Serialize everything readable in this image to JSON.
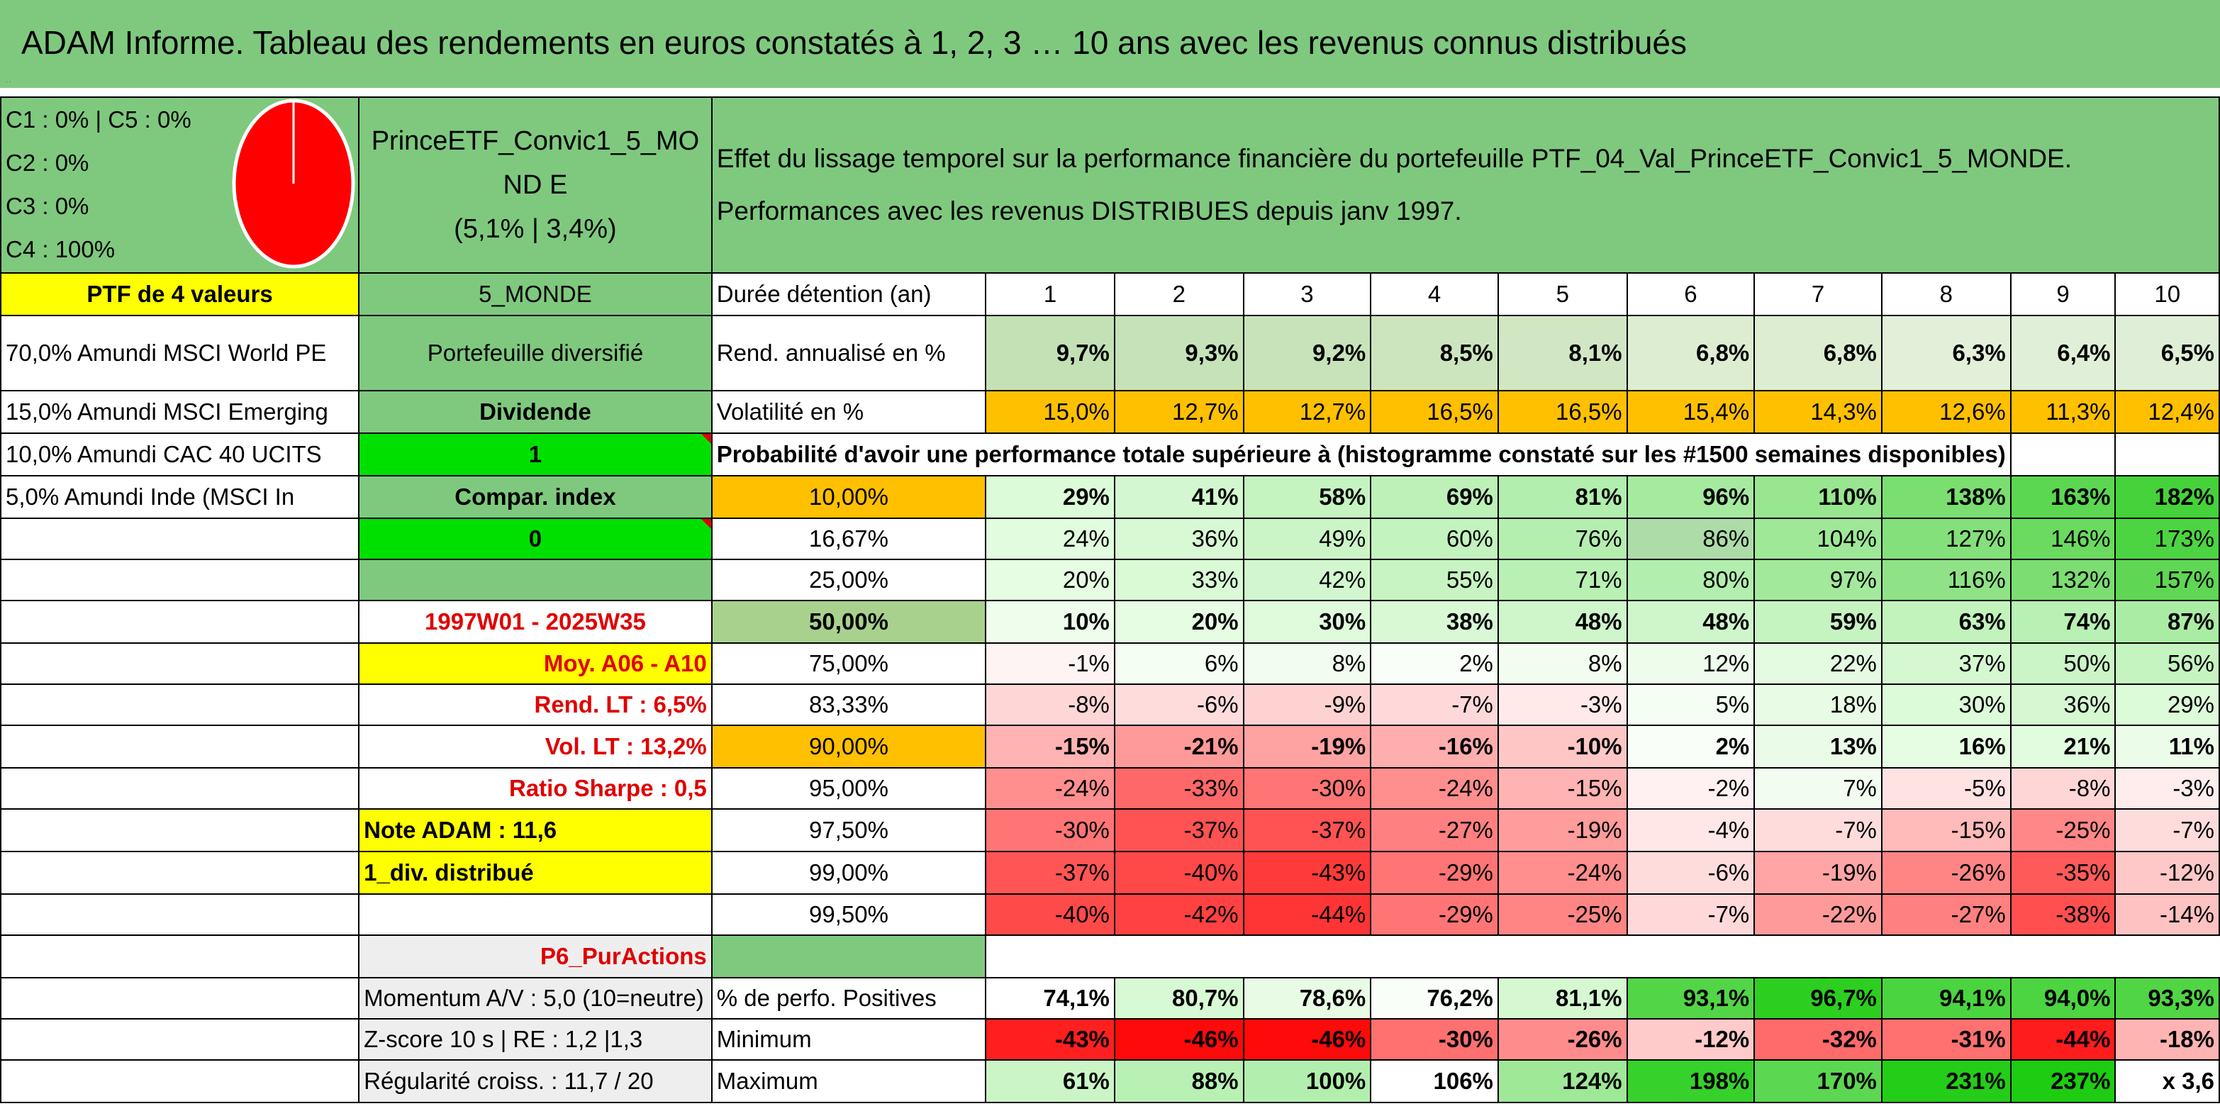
{
  "title": "ADAM Informe. Tableau des rendements en euros constatés à 1, 2, 3 … 10 ans avec les revenus connus distribués",
  "classes": [
    "C1 : 0% | C5 : 0%",
    "C2 : 0%",
    "C3 : 0%",
    "C4 : 100%"
  ],
  "pie": {
    "color": "#ff0000",
    "c4_share": 1.0
  },
  "portfolio": {
    "name": "PrinceETF_Convic1_5_MOND E",
    "stats": "(5,1% | 3,4%)",
    "count": "PTF de 4 valeurs",
    "zone": "5_MONDE",
    "type": "Portefeuille diversifié",
    "mode": "Dividende",
    "mode_value": "1",
    "compare": "Compar. index",
    "compare_value": "0",
    "period": "1997W01 - 2025W35",
    "avg": "Moy. A06 - A10",
    "rend_lt": "Rend. LT : 6,5%",
    "vol_lt": "Vol. LT : 13,2%",
    "sharpe": "Ratio Sharpe : 0,5",
    "note": "Note ADAM : 11,6",
    "div": "1_div. distribué",
    "category": "P6_PurActions",
    "momentum": "Momentum A/V : 5,0 (10=neutre)",
    "zscore": "Z-score 10 s | RE : 1,2 |1,3",
    "regularite": "Régularité croiss. : 11,7 / 20"
  },
  "holdings": [
    "70,0% Amundi MSCI World PE",
    "15,0% Amundi MSCI Emerging",
    "10,0% Amundi CAC 40 UCITS",
    "5,0% Amundi Inde (MSCI In"
  ],
  "effect": {
    "line1": "Effet du lissage temporel sur la performance financière du portefeuille PTF_04_Val_PrinceETF_Convic1_5_MONDE.",
    "line2": "Performances avec les revenus DISTRIBUES depuis janv 1997."
  },
  "table": {
    "duration_label": "Durée détention (an)",
    "years": [
      "1",
      "2",
      "3",
      "4",
      "5",
      "6",
      "7",
      "8",
      "9",
      "10"
    ],
    "rend_label": "Rend. annualisé en %",
    "rend": [
      "9,7%",
      "9,3%",
      "9,2%",
      "8,5%",
      "8,1%",
      "6,8%",
      "6,8%",
      "6,3%",
      "6,4%",
      "6,5%"
    ],
    "vol_label": "Volatilité en %",
    "vol": [
      "15,0%",
      "12,7%",
      "12,7%",
      "16,5%",
      "16,5%",
      "15,4%",
      "14,3%",
      "12,6%",
      "11,3%",
      "12,4%"
    ],
    "prob_label": "Probabilité d'avoir une performance totale supérieure à (histogramme constaté sur les #1500 semaines disponibles)",
    "quantiles": [
      {
        "label": "10,00%",
        "values": [
          "29%",
          "41%",
          "58%",
          "69%",
          "81%",
          "96%",
          "110%",
          "138%",
          "163%",
          "182%"
        ]
      },
      {
        "label": "16,67%",
        "values": [
          "24%",
          "36%",
          "49%",
          "60%",
          "76%",
          "86%",
          "104%",
          "127%",
          "146%",
          "173%"
        ]
      },
      {
        "label": "25,00%",
        "values": [
          "20%",
          "33%",
          "42%",
          "55%",
          "71%",
          "80%",
          "97%",
          "116%",
          "132%",
          "157%"
        ]
      },
      {
        "label": "50,00%",
        "values": [
          "10%",
          "20%",
          "30%",
          "38%",
          "48%",
          "48%",
          "59%",
          "63%",
          "74%",
          "87%"
        ]
      },
      {
        "label": "75,00%",
        "values": [
          "-1%",
          "6%",
          "8%",
          "2%",
          "8%",
          "12%",
          "22%",
          "37%",
          "50%",
          "56%"
        ]
      },
      {
        "label": "83,33%",
        "values": [
          "-8%",
          "-6%",
          "-9%",
          "-7%",
          "-3%",
          "5%",
          "18%",
          "30%",
          "36%",
          "29%"
        ]
      },
      {
        "label": "90,00%",
        "values": [
          "-15%",
          "-21%",
          "-19%",
          "-16%",
          "-10%",
          "2%",
          "13%",
          "16%",
          "21%",
          "11%"
        ]
      },
      {
        "label": "95,00%",
        "values": [
          "-24%",
          "-33%",
          "-30%",
          "-24%",
          "-15%",
          "-2%",
          "7%",
          "-5%",
          "-8%",
          "-3%"
        ]
      },
      {
        "label": "97,50%",
        "values": [
          "-30%",
          "-37%",
          "-37%",
          "-27%",
          "-19%",
          "-4%",
          "-7%",
          "-15%",
          "-25%",
          "-7%"
        ]
      },
      {
        "label": "99,00%",
        "values": [
          "-37%",
          "-40%",
          "-43%",
          "-29%",
          "-24%",
          "-6%",
          "-19%",
          "-26%",
          "-35%",
          "-12%"
        ]
      },
      {
        "label": "99,50%",
        "values": [
          "-40%",
          "-42%",
          "-44%",
          "-29%",
          "-25%",
          "-7%",
          "-22%",
          "-27%",
          "-38%",
          "-14%"
        ]
      }
    ],
    "pos_label": "% de perfo. Positives",
    "pos": [
      "74,1%",
      "80,7%",
      "78,6%",
      "76,2%",
      "81,1%",
      "93,1%",
      "96,7%",
      "94,1%",
      "94,0%",
      "93,3%"
    ],
    "min_label": "Minimum",
    "min": [
      "-43%",
      "-46%",
      "-46%",
      "-30%",
      "-26%",
      "-12%",
      "-32%",
      "-31%",
      "-44%",
      "-18%"
    ],
    "max_label": "Maximum",
    "max": [
      "61%",
      "88%",
      "100%",
      "106%",
      "124%",
      "198%",
      "170%",
      "231%",
      "237%"
    ],
    "max_ratio": "x 3,6"
  },
  "colors": {
    "header_green": "#7fc97f",
    "yellow": "#ffff00",
    "orange": "#ffc000",
    "bright_green": "#00e000",
    "red_text": "#e00000"
  }
}
